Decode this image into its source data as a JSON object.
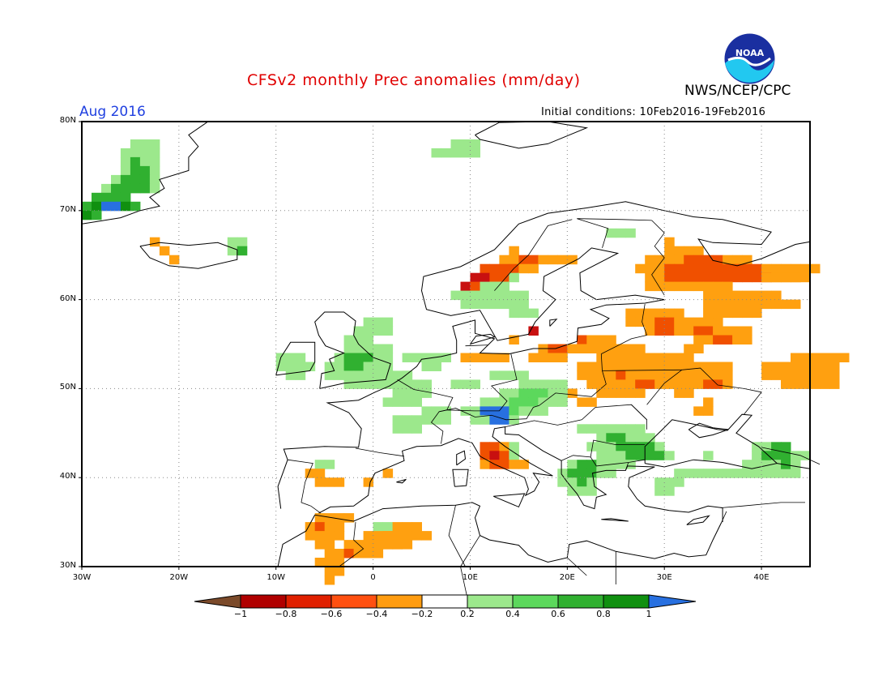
{
  "header": {
    "title": "CFSv2 monthly Prec anomalies (mm/day)",
    "org": "NWS/NCEP/CPC",
    "month": "Aug 2016",
    "initial_conditions": "Initial conditions: 10Feb2016-19Feb2016",
    "logo_text": "NOAA"
  },
  "map": {
    "lat_labels": [
      "80N",
      "70N",
      "60N",
      "50N",
      "40N",
      "30N"
    ],
    "lon_labels": [
      "30W",
      "20W",
      "10W",
      "0",
      "10E",
      "20E",
      "30E",
      "40E"
    ],
    "lat_range": [
      30,
      80
    ],
    "lon_range": [
      -30,
      45
    ],
    "grid": "dotted"
  },
  "colorbar": {
    "labels": [
      "-1",
      "-0.8",
      "-0.6",
      "-0.4",
      "-0.2",
      "0.2",
      "0.4",
      "0.6",
      "0.8",
      "1"
    ],
    "colors": {
      "below_min": "#7b4a2a",
      "c1": "#b00000",
      "c2": "#e02000",
      "c3": "#ff5010",
      "c4": "#ff9c10",
      "c5": "#ffffff",
      "c6": "#9ce88c",
      "c7": "#5cd85c",
      "c8": "#30b030",
      "c9": "#109010",
      "above_max": "#2870e0"
    }
  },
  "anomaly_classes": {
    "o": "#ffa010",
    "r": "#f05000",
    "d": "#c81010",
    "l": "#9ce88c",
    "g": "#5cd85c",
    "G": "#30b030",
    "D": "#109010",
    "b": "#2870e0"
  }
}
